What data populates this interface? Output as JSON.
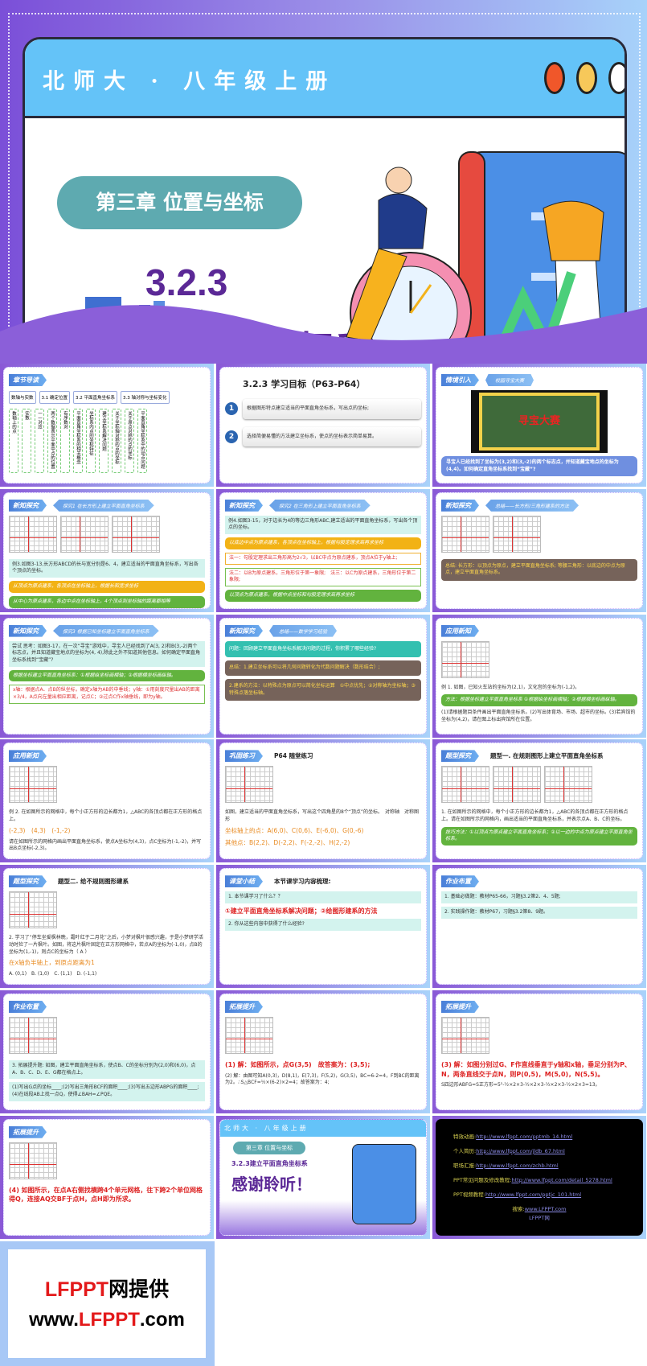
{
  "cover": {
    "series": "北师大 · 八年级上册",
    "chapter": "第三章 位置与坐标",
    "number": "3.2.3",
    "title": "建立平面直角坐标系",
    "window_buttons": [
      "#f0572a",
      "#f7c85a",
      "#ffffff"
    ]
  },
  "colors": {
    "frame_left": "#8a58d6",
    "frame_right": "#a9d3fa",
    "accent_purple": "#5b2896",
    "teal": "#5eaab0"
  },
  "slides": [
    {
      "tag": "章节导读",
      "kind": "outline",
      "flow": [
        "数轴与实数",
        "3.1 确定位置",
        "3.2 平面直角坐标系",
        "3.3 轴对称与坐标变化"
      ],
      "items": [
        "数轴上的点",
        "实数",
        "一一对应",
        "两个数据表示平面中点的位置",
        "有序数对",
        "平面直角坐标系的相关概念",
        "坐标系内点的坐标特征",
        "建立坐标系解决问题",
        "关于坐标轴对称的点的坐标",
        "关于原点对称的点的坐标",
        "平面直角坐标系中的动点问题"
      ]
    },
    {
      "kind": "goals",
      "title": "3.2.3 学习目标（P63-P64）",
      "goals": [
        {
          "n": "1",
          "text": "根据图形特点建立适当的平面直角坐标系，写出点的坐标;"
        },
        {
          "n": "2",
          "text": "选择简便易懂的方法建立坐标系，使点的坐标表示简单易算。"
        }
      ]
    },
    {
      "tag": "情境引入",
      "sub": "校园寻宝大赛",
      "kind": "photo",
      "photo": "寻宝大赛",
      "blocks": [
        {
          "s": "blue",
          "t": "寻宝人已经找到了坐标为(3,2)和(3,-2)的两个标志点，并知道藏宝地点的坐标为(4,4)。如何确定直角坐标系找到“宝藏”?"
        }
      ]
    },
    {
      "tag": "新知探究",
      "sub": "探究1 在长方形上建立平面直角坐标系",
      "grids": 3,
      "blocks": [
        {
          "s": "teal",
          "t": "例3.如图3-13,长方形ABCD的长与宽分别是6、4，建立适当的平面直角坐标系，写出各个顶点的坐标。"
        },
        {
          "s": "yellow",
          "t": "从顶点为原点建系，各顶点在坐标轴上，根据长和宽求坐标"
        },
        {
          "s": "green",
          "t": "从中心为原点建系，各边中点在坐标轴上，4个顶点到坐标轴的距离都相等"
        },
        {
          "s": "plain",
          "t": "图 3-13　还有其他建立平面直角坐标系的方法吗?"
        }
      ]
    },
    {
      "tag": "新知探究",
      "sub": "探究2 在三角形上建立平面直角坐标系",
      "blocks": [
        {
          "s": "teal",
          "t": "例4.如图3-15，对于边长为4的等边三角形ABC,建立适当的平面直角坐标系，写出各个顶点的坐标。"
        },
        {
          "s": "yellow",
          "t": "以底边中点为原点建系，各顶点在坐标轴上，根据勾股定理求高再求坐标"
        },
        {
          "s": "boxred",
          "t": "法一：勾股定理求出三角形高为2√3，以BC中点为原点建系，顶点A位于y轴上;"
        },
        {
          "s": "boxgreen",
          "t": "法二：以B为原点建系，三角形位于第一象限;　法三：以C为原点建系，三角形位于第二象限;"
        },
        {
          "s": "green",
          "t": "以顶点为原点建系，根据中点坐标和勾股定理求高再求坐标"
        }
      ]
    },
    {
      "tag": "新知探究",
      "sub": "总结——长方形/三角形建系的方法",
      "grids": 2,
      "blocks": [
        {
          "s": "brown",
          "t": "总结: 长方形：以顶点为原点，建立平面直角坐标系; 等腰三角形：以底边的中点为原点，建立平面直角坐标系。"
        }
      ]
    },
    {
      "tag": "新知探究",
      "sub": "探究3 根据已知坐标建立平面直角坐标系",
      "blocks": [
        {
          "s": "teal",
          "t": "尝试 思考：如图3-17，在一次“寻宝”游戏中，寻宝人已经找到了A(3, 2)和B(3,-2)两个标志点，并且知道藏宝地点的坐标为(4, 4),除此之外不知道其他信息。如何确定平面直角坐标系找到“宝藏”?"
        },
        {
          "s": "green",
          "t": "根据坐标建立平面直角坐标系：①根据纵坐标画横轴；②根据横坐标画纵轴。"
        },
        {
          "s": "boxgreen",
          "t": "x轴：根据点A、点B的纵坐标，确定x轴为AB的中垂线；y轴：①用刻度尺量出AB的距离×3/4，A点向左量出相应距离，记点C；②过点C作x轴垂线，即为y轴。"
        }
      ]
    },
    {
      "tag": "新知探究",
      "sub": "总结——数学学习经验",
      "blocks": [
        {
          "s": "tealh",
          "t": "问题：回顾建立平面直角坐标系解决问题的过程，你积累了哪些经验?"
        },
        {
          "s": "brown",
          "t": "总结：1.建立坐标系可以将几何问题转化为代数问题解决（数形结合）;"
        },
        {
          "s": "brown",
          "t": "2.建系的方法：以特殊点为原点可以简化坐标运算　①中点优先；②对称轴为坐标轴；③特殊点落坐标轴。"
        }
      ]
    },
    {
      "tag": "应用新知",
      "grids": 1,
      "blocks": [
        {
          "s": "plain",
          "t": "例 1. 如图，已知火车站的坐标为(2,1)，文化宫的坐标为(-1,2)。"
        },
        {
          "s": "green",
          "t": "方法：根据坐标建立平面直角坐标系 ①根据纵坐标画横轴；②根据横坐标画纵轴。"
        },
        {
          "s": "plain",
          "t": "(1)请根据题目条件画出平面直角坐标系。(2)写出体育场、市场、超市的坐标。(3)若宾馆的坐标为(4,2)，请在图上标出宾馆所在位置。"
        }
      ]
    },
    {
      "tag": "应用新知",
      "grids": 1,
      "blocks": [
        {
          "s": "plain",
          "t": "例 2. 在如图所示的网格中，每个小正方形的边长都为1，△ABC的各顶点都在正方形的格点上。"
        },
        {
          "s": "orange",
          "t": "(-2,3)　(4,3)　(-1,-2)"
        },
        {
          "s": "plain",
          "t": "请在如图所示的网格内画出平面直角坐标系，使点A坐标为(4,3)，点C坐标为(-1,-2)，并写出B点坐标(-2,3)。"
        }
      ]
    },
    {
      "tag": "巩固练习",
      "plain": "P64 随堂练习",
      "grids": 1,
      "blocks": [
        {
          "s": "plain",
          "t": "如图，建立适当的平面直角坐标系，写出这个四角星的8个“顶点”的坐标。　对称轴　对称图形"
        },
        {
          "s": "orange",
          "t": "坐标轴上的点：A(6,0)、C(0,6)、E(-6,0)、G(0,-6)"
        },
        {
          "s": "orange",
          "t": "其他点：B(2,2)、D(-2,2)、F(-2,-2)、H(2,-2)"
        }
      ]
    },
    {
      "tag": "题型探究",
      "plain": "题型一. 在规则图形上建立平面直角坐标系",
      "grids": 3,
      "blocks": [
        {
          "s": "plain",
          "t": "1. 在如图所示的网格中，每个小正方形的边长都为1，△ABC的各顶点都在正方形的格点上。请在如图所示的网格内，画出适当的平面直角坐标系，并表示点A、B、C的坐标。"
        },
        {
          "s": "green",
          "t": "技巧方法：①以顶点为原点建立平面直角坐标系；②以一边的中点为原点建立平面直角坐标系。"
        }
      ]
    },
    {
      "tag": "题型探究",
      "plain": "题型二. 给不规则图形建系",
      "grids": 1,
      "blocks": [
        {
          "s": "plain",
          "t": "2. 学习了“停车坐爱枫林晚，霜叶红于二月花”之后，小梦对枫叶很感兴趣，于是小梦研学活动时捡了一片枫叶。如图，将这片枫叶固定在正方形网格中，若点A的坐标为(-1,0)，点B的坐标为(1,-1)，则点C的坐标为（ A ）"
        },
        {
          "s": "orange",
          "t": "在x轴负半轴上，到原点距离为1"
        },
        {
          "s": "plain",
          "t": "A. (0,1)　B. (1,0)　C. (1,1)　D. (-1,1)"
        }
      ]
    },
    {
      "tag": "课堂小结",
      "plain": "本节课学习内容梳理:",
      "blocks": [
        {
          "s": "teal",
          "t": "1. 本节课学习了什么？？"
        },
        {
          "s": "red",
          "t": "①建立平面直角坐标系解决问题；②给图形建系的方法"
        },
        {
          "s": "teal",
          "t": "2. 你从这些内容中获得了什么经验?"
        }
      ]
    },
    {
      "tag": "作业布置",
      "blocks": [
        {
          "s": "teal",
          "t": "1. 基础必做题：教材P65-66，习题§3.2第2、4、5题;"
        },
        {
          "s": "teal",
          "t": "2. 实践操作题：教材P67，习题§3.2第8、9题。"
        }
      ]
    },
    {
      "tag": "作业布置",
      "grids": 1,
      "blocks": [
        {
          "s": "teal",
          "t": "3. 拓展提升题: 如图，建立平面直角坐标系，使点B、C的坐标分别为(2,0)和(6,0)，点A、B、C、D、E、G都在格点上。"
        },
        {
          "s": "teal",
          "t": "(1)写出G点的坐标____;(2)写出三角形BCF的面积____;(3)写出五边形ABPG的面积____;(4)在线段AB上找一点Q，使得∠BAH=∠PQE。"
        }
      ]
    },
    {
      "tag": "拓展提升",
      "grids": 1,
      "blocks": [
        {
          "s": "red",
          "t": "(1) 解：如图所示，点G(3,5)　故答案为：(3,5);"
        },
        {
          "s": "plain",
          "t": "(2) 解：由图可知A(0,3)，D(8,1)，E(7,3)，F(5,2)，G(3,5)，BC=6-2=4，F到BC的距离为2。∴S△BCF=½×(6-2)×2=4；故答案为：4;"
        }
      ]
    },
    {
      "tag": "拓展提升",
      "grids": 1,
      "blocks": [
        {
          "s": "red",
          "t": "(3) 解：如图分别过G、F作直线垂直于y轴和x轴，垂足分别为P、N，两条直线交于点N，则P(0,5)，M(5,0)，N(5,5)。"
        },
        {
          "s": "plain",
          "t": "S四边形ABFG=S正方形=5²-½×2×3-½×2×3-½×2×3-½×2×3=13。"
        }
      ]
    },
    {
      "tag": "拓展提升",
      "grids": 1,
      "blocks": [
        {
          "s": "red",
          "t": "(4) 如图所示，在点A右侧找横跨4个单元网格，往下跨2个单位网格得Q，连接AQ交BF于点H，点H即为所求。"
        }
      ]
    },
    {
      "kind": "thanks",
      "series": "北师大 · 八年级上册",
      "chapter": "第三章 位置与坐标",
      "title": "3.2.3建立平面直角坐标系",
      "thanks": "感谢聆听！"
    },
    {
      "kind": "links",
      "links": [
        {
          "label": "特效动画:",
          "url": "http://www.lfppt.com/pptmb_14.html"
        },
        {
          "label": "个人简历:",
          "url": "http://www.lfppt.com/jldb_67.html"
        },
        {
          "label": "职场汇报:",
          "url": "http://www.lfppt.com/zchb.html"
        },
        {
          "label": "PPT常见问题及修改教程:",
          "url": "http://www.lfppt.com/detail_5278.html"
        },
        {
          "label": "PPT视频教程:",
          "url": "http://www.lfppt.com/pptjc_101.html"
        }
      ],
      "search_label": "搜索:",
      "search_url": "www.LFPPT.com",
      "brand": "LFPPT网"
    }
  ],
  "footer": {
    "line1_red": "LFPPT",
    "line1_black": "网提供",
    "line2_a": "www.",
    "line2_red": "LFPPT",
    ".line2_c": "",
    "line2_c": ".com"
  }
}
